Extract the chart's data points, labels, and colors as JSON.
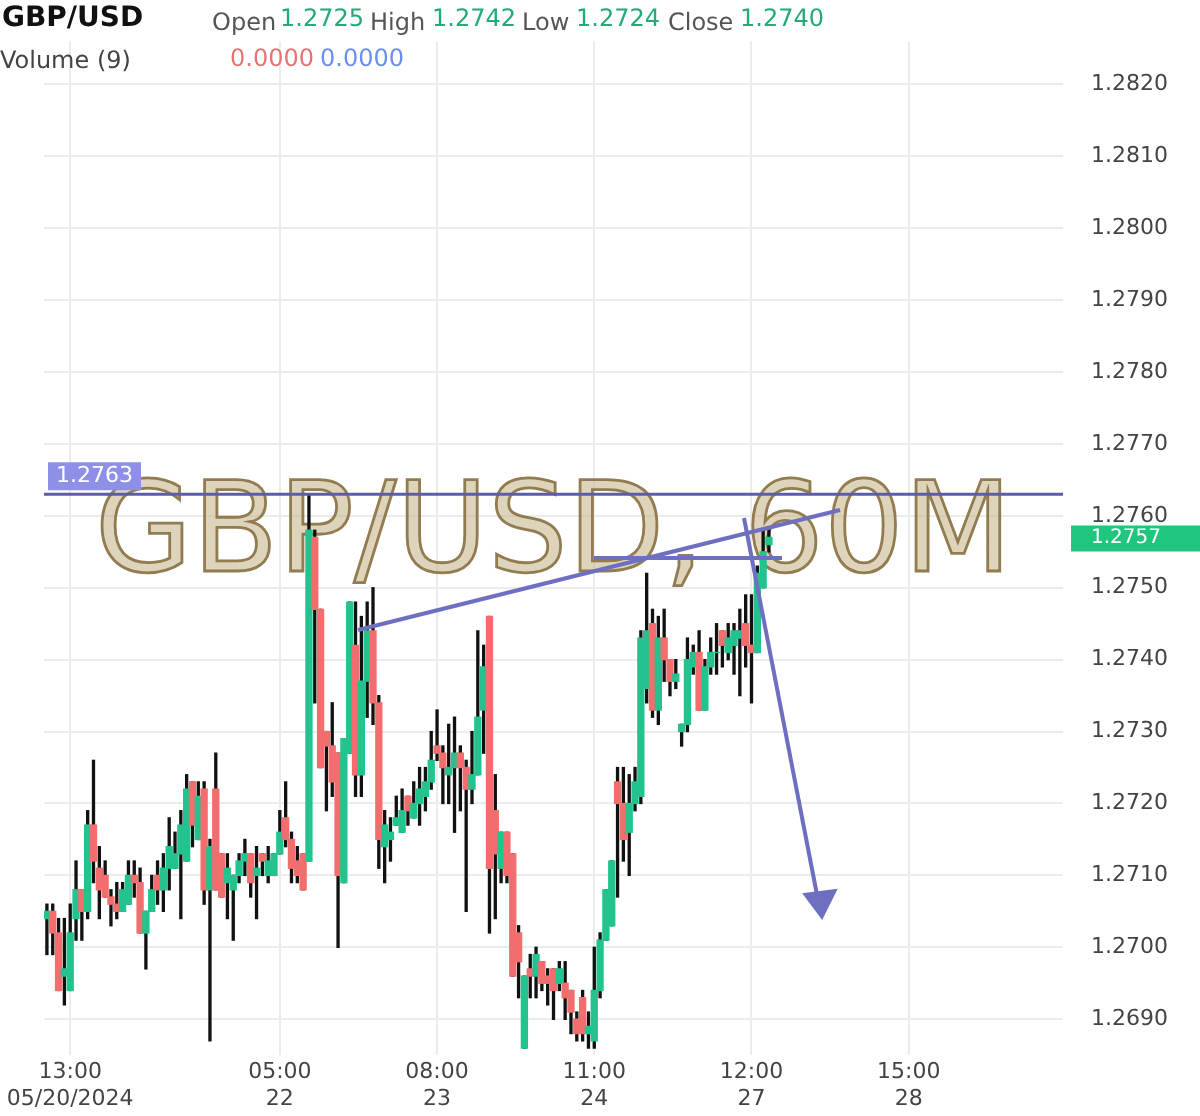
{
  "chart_data": {
    "type": "candlestick",
    "title": "GBP/USD",
    "categories": [
      null,
      null,
      null,
      null,
      "13:00\n05/20/2024",
      null,
      null,
      null,
      null,
      null,
      null,
      null,
      null,
      null,
      null,
      null,
      null,
      null,
      null,
      null,
      null,
      null,
      null,
      null,
      null,
      null,
      null,
      null,
      null,
      null,
      null,
      null,
      null,
      null,
      null,
      null,
      null,
      null,
      null,
      null,
      "05:00\n22",
      null,
      null,
      null,
      null,
      null,
      null,
      null,
      null,
      null,
      null,
      null,
      null,
      null,
      null,
      null,
      null,
      null,
      null,
      null,
      null,
      null,
      null,
      null,
      null,
      null,
      null,
      "08:00\n23",
      null,
      null,
      null,
      null,
      null,
      null,
      null,
      null,
      null,
      null,
      null,
      null,
      null,
      null,
      null,
      null,
      null,
      null,
      null,
      null,
      null,
      null,
      null,
      null,
      null,
      null,
      "11:00\n24",
      null,
      null,
      null,
      null,
      null,
      null,
      null,
      null,
      null,
      null,
      null,
      null,
      null,
      null,
      null,
      null,
      null,
      null,
      null,
      null,
      null,
      null,
      null,
      null,
      null,
      null,
      "12:00\n27",
      null,
      null,
      null,
      null,
      null,
      null,
      null,
      null,
      null,
      null,
      null,
      null,
      null,
      null,
      null,
      null,
      null,
      null,
      null,
      null,
      null,
      null,
      null,
      null,
      null,
      null,
      "15:00\n28",
      null,
      null,
      null,
      null,
      null,
      null,
      null,
      null,
      null,
      null,
      null,
      null,
      null,
      null,
      null,
      null,
      null,
      null,
      null,
      null,
      null,
      null,
      null,
      null,
      null,
      null
    ],
    "ohlc": [
      [
        1.2704,
        1.2706,
        1.2699,
        1.2705
      ],
      [
        1.2705,
        1.2706,
        1.2699,
        1.2702
      ],
      [
        1.2702,
        1.2704,
        1.2694,
        1.2694
      ],
      [
        1.2696,
        1.2704,
        1.2692,
        1.2697
      ],
      [
        1.2694,
        1.2706,
        1.2694,
        1.2702
      ],
      [
        1.2704,
        1.2712,
        1.2701,
        1.2708
      ],
      [
        1.2708,
        1.2708,
        1.2701,
        1.2705
      ],
      [
        1.2705,
        1.2719,
        1.2704,
        1.2717
      ],
      [
        1.2717,
        1.2726,
        1.2709,
        1.2712
      ],
      [
        1.2711,
        1.2714,
        1.2704,
        1.2708
      ],
      [
        1.271,
        1.2712,
        1.2707,
        1.2707
      ],
      [
        1.2707,
        1.2708,
        1.2703,
        1.2706
      ],
      [
        1.2706,
        1.2709,
        1.2704,
        1.2705
      ],
      [
        1.2705,
        1.2709,
        1.2705,
        1.2708
      ],
      [
        1.2706,
        1.2712,
        1.2706,
        1.271
      ],
      [
        1.271,
        1.2712,
        1.2707,
        1.2709
      ],
      [
        1.2709,
        1.2711,
        1.2702,
        1.2702
      ],
      [
        1.2702,
        1.2705,
        1.2697,
        1.2705
      ],
      [
        1.2705,
        1.271,
        1.2705,
        1.2708
      ],
      [
        1.271,
        1.2712,
        1.2706,
        1.2708
      ],
      [
        1.2708,
        1.2713,
        1.2705,
        1.2711
      ],
      [
        1.2711,
        1.2718,
        1.2708,
        1.2714
      ],
      [
        1.2711,
        1.2716,
        1.2711,
        1.2713
      ],
      [
        1.2713,
        1.2719,
        1.2704,
        1.2717
      ],
      [
        1.2712,
        1.2724,
        1.2712,
        1.2722
      ],
      [
        1.2723,
        1.2723,
        1.2714,
        1.2717
      ],
      [
        1.2715,
        1.2723,
        1.2715,
        1.2721
      ],
      [
        1.2722,
        1.2723,
        1.2706,
        1.2708
      ],
      [
        1.2708,
        1.2715,
        1.2687,
        1.2714
      ],
      [
        1.2722,
        1.2727,
        1.2708,
        1.2708
      ],
      [
        1.2713,
        1.2713,
        1.2707,
        1.2707
      ],
      [
        1.2709,
        1.2713,
        1.2704,
        1.2711
      ],
      [
        1.2708,
        1.271,
        1.2701,
        1.271
      ],
      [
        1.271,
        1.2713,
        1.2709,
        1.2712
      ],
      [
        1.2712,
        1.2715,
        1.271,
        1.2713
      ],
      [
        1.2713,
        1.2713,
        1.2707,
        1.2709
      ],
      [
        1.271,
        1.2714,
        1.2704,
        1.2711
      ],
      [
        1.2713,
        1.2713,
        1.271,
        1.2712
      ],
      [
        1.271,
        1.2714,
        1.2709,
        1.2712
      ],
      [
        1.271,
        1.2713,
        1.271,
        1.2713
      ],
      [
        1.2713,
        1.2719,
        1.2713,
        1.2716
      ],
      [
        1.2718,
        1.2723,
        1.2714,
        1.2715
      ],
      [
        1.2715,
        1.2716,
        1.2709,
        1.2711
      ],
      [
        1.2712,
        1.2714,
        1.2709,
        1.271
      ],
      [
        1.2713,
        1.2713,
        1.2708,
        1.2708
      ],
      [
        1.2712,
        1.2763,
        1.2712,
        1.2758
      ],
      [
        1.2757,
        1.2758,
        1.2734,
        1.2747
      ],
      [
        1.2747,
        1.2747,
        1.2725,
        1.2725
      ],
      [
        1.273,
        1.273,
        1.2719,
        1.2728
      ],
      [
        1.2728,
        1.2734,
        1.2721,
        1.2723
      ],
      [
        1.2727,
        1.2727,
        1.27,
        1.271
      ],
      [
        1.2709,
        1.2729,
        1.2709,
        1.2729
      ],
      [
        1.2727,
        1.2748,
        1.2727,
        1.2748
      ],
      [
        1.2742,
        1.2748,
        1.2721,
        1.2724
      ],
      [
        1.2724,
        1.2746,
        1.2721,
        1.2737
      ],
      [
        1.2737,
        1.2748,
        1.2732,
        1.2744
      ],
      [
        1.2744,
        1.275,
        1.2731,
        1.2734
      ],
      [
        1.2734,
        1.2735,
        1.2711,
        1.2715
      ],
      [
        1.2714,
        1.2719,
        1.2709,
        1.2717
      ],
      [
        1.2715,
        1.2718,
        1.2712,
        1.2716
      ],
      [
        1.2717,
        1.2721,
        1.2717,
        1.2718
      ],
      [
        1.2716,
        1.2722,
        1.2716,
        1.2719
      ],
      [
        1.2721,
        1.2721,
        1.2717,
        1.2719
      ],
      [
        1.2718,
        1.2723,
        1.2718,
        1.272
      ],
      [
        1.272,
        1.2725,
        1.2717,
        1.2722
      ],
      [
        1.2721,
        1.2725,
        1.2719,
        1.2723
      ],
      [
        1.2723,
        1.273,
        1.2722,
        1.2726
      ],
      [
        1.2728,
        1.2733,
        1.2726,
        1.2727
      ],
      [
        1.2727,
        1.2728,
        1.272,
        1.2725
      ],
      [
        1.2724,
        1.2731,
        1.272,
        1.2725
      ],
      [
        1.2725,
        1.2732,
        1.2716,
        1.2727
      ],
      [
        1.2727,
        1.2728,
        1.2719,
        1.2725
      ],
      [
        1.2725,
        1.2726,
        1.2705,
        1.2722
      ],
      [
        1.2722,
        1.273,
        1.272,
        1.2724
      ],
      [
        1.2724,
        1.2744,
        1.2724,
        1.2732
      ],
      [
        1.2733,
        1.2742,
        1.2727,
        1.2739
      ],
      [
        1.2746,
        1.2746,
        1.2702,
        1.2711
      ],
      [
        1.2719,
        1.2724,
        1.2704,
        1.2713
      ],
      [
        1.2711,
        1.2716,
        1.2709,
        1.2716
      ],
      [
        1.2716,
        1.2716,
        1.2709,
        1.271
      ],
      [
        1.2713,
        1.2713,
        1.2696,
        1.2696
      ],
      [
        1.2702,
        1.2703,
        1.2693,
        1.2698
      ],
      [
        1.2686,
        1.2696,
        1.2686,
        1.2696
      ],
      [
        1.2697,
        1.2699,
        1.2693,
        1.2696
      ],
      [
        1.2696,
        1.27,
        1.2693,
        1.2699
      ],
      [
        1.2698,
        1.2698,
        1.2694,
        1.2695
      ],
      [
        1.2696,
        1.2697,
        1.2692,
        1.2695
      ],
      [
        1.2697,
        1.2697,
        1.269,
        1.2694
      ],
      [
        1.2695,
        1.2698,
        1.2694,
        1.2697
      ],
      [
        1.2695,
        1.2698,
        1.269,
        1.2693
      ],
      [
        1.2694,
        1.2694,
        1.2688,
        1.2691
      ],
      [
        1.269,
        1.2691,
        1.2687,
        1.2688
      ],
      [
        1.2693,
        1.2694,
        1.2687,
        1.2688
      ],
      [
        1.2688,
        1.2691,
        1.2686,
        1.2689
      ],
      [
        1.2687,
        1.27,
        1.2686,
        1.2694
      ],
      [
        1.2694,
        1.2702,
        1.2693,
        1.2701
      ],
      [
        1.2701,
        1.2708,
        1.2701,
        1.2708
      ],
      [
        1.2703,
        1.2712,
        1.2703,
        1.2712
      ],
      [
        1.2723,
        1.2725,
        1.2707,
        1.272
      ],
      [
        1.272,
        1.2725,
        1.2712,
        1.2715
      ],
      [
        1.2716,
        1.2724,
        1.271,
        1.272
      ],
      [
        1.272,
        1.2725,
        1.2719,
        1.2723
      ],
      [
        1.2721,
        1.2744,
        1.272,
        1.2743
      ],
      [
        1.2736,
        1.2752,
        1.2734,
        1.2744
      ],
      [
        1.2745,
        1.2747,
        1.2732,
        1.2733
      ],
      [
        1.2733,
        1.2746,
        1.2731,
        1.2743
      ],
      [
        1.2743,
        1.2747,
        1.2737,
        1.274
      ],
      [
        1.274,
        1.274,
        1.2735,
        1.2737
      ],
      [
        1.2737,
        1.274,
        1.2736,
        1.2738
      ],
      [
        1.273,
        1.2731,
        1.2728,
        1.2731
      ],
      [
        1.2731,
        1.2743,
        1.273,
        1.274
      ],
      [
        1.2739,
        1.2742,
        1.2738,
        1.2741
      ],
      [
        1.2741,
        1.2744,
        1.2733,
        1.2733
      ],
      [
        1.2733,
        1.274,
        1.2733,
        1.2739
      ],
      [
        1.2739,
        1.2743,
        1.2738,
        1.2741
      ],
      [
        1.2741,
        1.2745,
        1.2738,
        1.2741
      ],
      [
        1.2744,
        1.2744,
        1.2739,
        1.2742
      ],
      [
        1.2741,
        1.2745,
        1.274,
        1.2743
      ],
      [
        1.2742,
        1.2745,
        1.2738,
        1.2744
      ],
      [
        1.2743,
        1.2747,
        1.2735,
        1.2744
      ],
      [
        1.2745,
        1.2749,
        1.2739,
        1.2742
      ],
      [
        1.2742,
        1.2749,
        1.2734,
        1.2741
      ],
      [
        1.2741,
        1.2753,
        1.2741,
        1.2752
      ],
      [
        1.275,
        1.2758,
        1.275,
        1.2755
      ],
      [
        1.2756,
        1.2758,
        1.2755,
        1.2757
      ],
      null,
      null,
      null,
      null,
      null,
      null,
      null,
      null,
      null,
      null,
      null,
      null,
      null,
      null,
      null,
      null,
      null,
      null,
      null,
      null,
      null,
      null,
      null,
      null,
      null,
      null,
      null,
      null,
      null,
      null,
      null,
      null,
      null,
      null,
      null,
      null,
      null,
      null,
      null,
      null,
      null,
      null,
      null,
      null,
      null,
      null,
      null,
      null,
      null,
      null
    ],
    "colors": [
      "#22c38e",
      "#f26d6d",
      "#f26d6d",
      "#22c38e",
      "#22c38e",
      "#22c38e",
      "#f26d6d",
      "#22c38e",
      "#f26d6d",
      "#f26d6d",
      "#f26d6d",
      "#f26d6d",
      "#f26d6d",
      "#22c38e",
      "#22c38e",
      "#f26d6d",
      "#f26d6d",
      "#22c38e",
      "#22c38e",
      "#f26d6d",
      "#22c38e",
      "#22c38e",
      "#22c38e",
      "#22c38e",
      "#22c38e",
      "#f26d6d",
      "#22c38e",
      "#f26d6d",
      "#22c38e",
      "#f26d6d",
      "#f26d6d",
      "#22c38e",
      "#22c38e",
      "#22c38e",
      "#22c38e",
      "#f26d6d",
      "#22c38e",
      "#f26d6d",
      "#22c38e",
      "#22c38e",
      "#22c38e",
      "#f26d6d",
      "#f26d6d",
      "#f26d6d",
      "#f26d6d",
      "#22c38e",
      "#f26d6d",
      "#f26d6d",
      "#f26d6d",
      "#f26d6d",
      "#f26d6d",
      "#22c38e",
      "#22c38e",
      "#f26d6d",
      "#22c38e",
      "#22c38e",
      "#f26d6d",
      "#f26d6d",
      "#22c38e",
      "#22c38e",
      "#22c38e",
      "#22c38e",
      "#f26d6d",
      "#22c38e",
      "#22c38e",
      "#22c38e",
      "#22c38e",
      "#f26d6d",
      "#f26d6d",
      "#22c38e",
      "#22c38e",
      "#f26d6d",
      "#f26d6d",
      "#22c38e",
      "#22c38e",
      "#22c38e",
      "#f26d6d",
      "#f26d6d",
      "#22c38e",
      "#f26d6d",
      "#f26d6d",
      "#f26d6d",
      "#22c38e",
      "#f26d6d",
      "#22c38e",
      "#f26d6d",
      "#f26d6d",
      "#f26d6d",
      "#22c38e",
      "#f26d6d",
      "#f26d6d",
      "#f26d6d",
      "#f26d6d",
      "#22c38e",
      "#22c38e",
      "#22c38e",
      "#22c38e",
      "#22c38e",
      "#f26d6d",
      "#f26d6d",
      "#22c38e",
      "#22c38e",
      "#22c38e",
      "#22c38e",
      "#f26d6d",
      "#22c38e",
      "#f26d6d",
      "#f26d6d",
      "#22c38e",
      "#22c38e",
      "#22c38e",
      "#22c38e",
      "#f26d6d",
      "#22c38e",
      "#22c38e",
      "#22c38e",
      "#f26d6d",
      "#22c38e",
      "#22c38e",
      "#22c38e",
      "#f26d6d",
      "#f26d6d",
      "#22c38e",
      "#22c38e",
      "#22c38e",
      null,
      null,
      null,
      null,
      null,
      null,
      null,
      null,
      null,
      null,
      null,
      null,
      null,
      null,
      null,
      null,
      null,
      null,
      null,
      null,
      null,
      null,
      null,
      null,
      null,
      null,
      null,
      null,
      null,
      null,
      null,
      null,
      null,
      null,
      null,
      null,
      null,
      null,
      null,
      null,
      null,
      null,
      null,
      null,
      null,
      null,
      null,
      null,
      null,
      null
    ],
    "ylim": [
      1.2685,
      1.2826
    ],
    "yticks": [
      {
        "value": 1.269,
        "label": "1.2690"
      },
      {
        "value": 1.27,
        "label": "1.2700"
      },
      {
        "value": 1.271,
        "label": "1.2710"
      },
      {
        "value": 1.272,
        "label": "1.2720"
      },
      {
        "value": 1.273,
        "label": "1.2730"
      },
      {
        "value": 1.274,
        "label": "1.2740"
      },
      {
        "value": 1.275,
        "label": "1.2750"
      },
      {
        "value": 1.276,
        "label": "1.2760"
      },
      {
        "value": 1.277,
        "label": "1.2770"
      },
      {
        "value": 1.278,
        "label": "1.2780"
      },
      {
        "value": 1.279,
        "label": "1.2790"
      },
      {
        "value": 1.28,
        "label": "1.2800"
      },
      {
        "value": 1.281,
        "label": "1.2810"
      },
      {
        "value": 1.282,
        "label": "1.2820"
      }
    ],
    "grid": true,
    "ref_lines": [
      {
        "axis": "y",
        "value": 1.2763,
        "label": "1.2763",
        "color": "#5b5ea6"
      }
    ],
    "annotations": [
      "Open",
      "1.2725",
      "High",
      "1.2742",
      "Low",
      "1.2724",
      "Close",
      "1.2740",
      "Volume (9)",
      "0.0000",
      "0.0000",
      "GBP/USD, 60M",
      "1.2757"
    ]
  }
}
